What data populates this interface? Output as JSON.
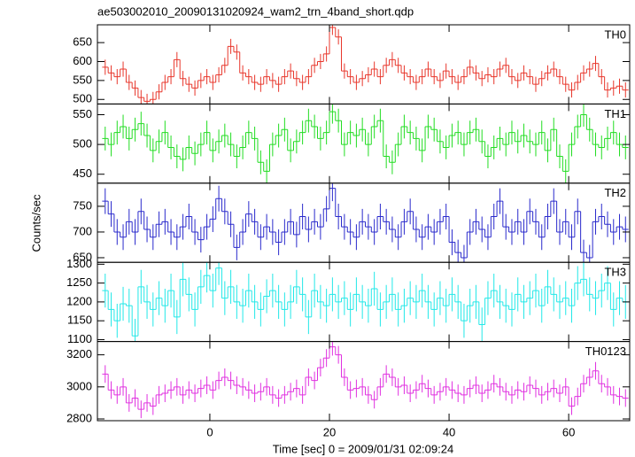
{
  "chart_data": {
    "type": "step",
    "title": "ae503002010_20090131020924_wam2_trn_4band_short.qdp",
    "xlabel": "Time [sec] 0 = 2009/01/31 02:09:24",
    "ylabel": "Counts/sec",
    "xlim": [
      -18.8,
      70.2
    ],
    "xticks": [
      0,
      20,
      40,
      60
    ],
    "x": [
      -17.5,
      -16.5,
      -15.5,
      -14.5,
      -13.5,
      -12.5,
      -11.5,
      -10.5,
      -9.5,
      -8.5,
      -7.5,
      -6.5,
      -5.5,
      -4.5,
      -3.5,
      -2.5,
      -1.5,
      -0.5,
      0.5,
      1.5,
      2.5,
      3.5,
      4.5,
      5.5,
      6.5,
      7.5,
      8.5,
      9.5,
      10.5,
      11.5,
      12.5,
      13.5,
      14.5,
      15.5,
      16.5,
      17.5,
      18.5,
      19.5,
      20.5,
      21.5,
      22.5,
      23.5,
      24.5,
      25.5,
      26.5,
      27.5,
      28.5,
      29.5,
      30.5,
      31.5,
      32.5,
      33.5,
      34.5,
      35.5,
      36.5,
      37.5,
      38.5,
      39.5,
      40.5,
      41.5,
      42.5,
      43.5,
      44.5,
      45.5,
      46.5,
      47.5,
      48.5,
      49.5,
      50.5,
      51.5,
      52.5,
      53.5,
      54.5,
      55.5,
      56.5,
      57.5,
      58.5,
      59.5,
      60.5,
      61.5,
      62.5,
      63.5,
      64.5,
      65.5,
      66.5,
      67.5,
      68.5,
      69.5
    ],
    "panels": [
      {
        "name": "TH0",
        "color": "#e8372c",
        "ylim": [
          488,
          697
        ],
        "yticks": [
          500,
          550,
          600,
          650
        ],
        "yerr": 20,
        "values": [
          585,
          570,
          560,
          580,
          545,
          530,
          505,
          495,
          500,
          520,
          545,
          560,
          605,
          555,
          540,
          530,
          550,
          560,
          545,
          565,
          590,
          640,
          625,
          570,
          560,
          545,
          540,
          560,
          550,
          540,
          560,
          575,
          555,
          545,
          560,
          590,
          600,
          620,
          690,
          665,
          575,
          560,
          545,
          555,
          565,
          580,
          560,
          590,
          605,
          590,
          570,
          560,
          545,
          560,
          580,
          560,
          550,
          575,
          560,
          545,
          560,
          585,
          570,
          555,
          565,
          560,
          580,
          590,
          560,
          550,
          570,
          560,
          540,
          555,
          570,
          580,
          560,
          540,
          525,
          545,
          570,
          580,
          595,
          560,
          525,
          530,
          535,
          525
        ]
      },
      {
        "name": "TH1",
        "color": "#22dd22",
        "ylim": [
          435,
          568
        ],
        "yticks": [
          450,
          500,
          550
        ],
        "yerr": 20,
        "values": [
          510,
          500,
          520,
          530,
          510,
          525,
          535,
          515,
          490,
          505,
          520,
          495,
          480,
          475,
          495,
          485,
          500,
          520,
          490,
          505,
          515,
          500,
          480,
          495,
          520,
          510,
          470,
          455,
          500,
          515,
          525,
          490,
          505,
          520,
          540,
          530,
          510,
          520,
          555,
          540,
          500,
          520,
          515,
          525,
          500,
          530,
          540,
          480,
          470,
          500,
          530,
          520,
          510,
          490,
          530,
          525,
          505,
          495,
          515,
          520,
          500,
          520,
          525,
          505,
          480,
          495,
          510,
          500,
          520,
          505,
          515,
          505,
          500,
          520,
          490,
          525,
          480,
          455,
          500,
          530,
          550,
          525,
          500,
          495,
          510,
          520,
          500,
          495
        ]
      },
      {
        "name": "TH2",
        "color": "#2a2acc",
        "ylim": [
          641,
          795
        ],
        "yticks": [
          650,
          700,
          750
        ],
        "yerr": 25,
        "values": [
          760,
          735,
          700,
          690,
          720,
          700,
          740,
          705,
          690,
          715,
          720,
          700,
          690,
          710,
          730,
          700,
          685,
          710,
          725,
          765,
          740,
          715,
          670,
          700,
          735,
          720,
          690,
          710,
          700,
          680,
          700,
          720,
          695,
          730,
          705,
          720,
          710,
          745,
          785,
          730,
          710,
          700,
          690,
          720,
          710,
          700,
          730,
          720,
          705,
          690,
          720,
          740,
          705,
          690,
          710,
          700,
          720,
          730,
          680,
          660,
          650,
          700,
          720,
          705,
          690,
          730,
          760,
          710,
          700,
          720,
          700,
          740,
          720,
          690,
          730,
          760,
          700,
          720,
          690,
          740,
          660,
          650,
          720,
          730,
          715,
          700,
          710,
          705
        ]
      },
      {
        "name": "TH3",
        "color": "#22e8e8",
        "ylim": [
          1095,
          1305
        ],
        "yticks": [
          1100,
          1150,
          1200,
          1250,
          1300
        ],
        "yerr": 45,
        "values": [
          1230,
          1180,
          1150,
          1195,
          1190,
          1110,
          1240,
          1200,
          1180,
          1210,
          1190,
          1230,
          1160,
          1260,
          1220,
          1180,
          1240,
          1270,
          1230,
          1290,
          1210,
          1240,
          1200,
          1190,
          1230,
          1200,
          1180,
          1215,
          1230,
          1200,
          1180,
          1200,
          1240,
          1220,
          1160,
          1230,
          1200,
          1190,
          1220,
          1200,
          1210,
          1180,
          1220,
          1200,
          1190,
          1235,
          1180,
          1200,
          1220,
          1180,
          1190,
          1210,
          1200,
          1230,
          1200,
          1180,
          1210,
          1190,
          1220,
          1200,
          1150,
          1190,
          1200,
          1140,
          1210,
          1230,
          1200,
          1190,
          1180,
          1220,
          1200,
          1210,
          1230,
          1190,
          1240,
          1220,
          1200,
          1210,
          1190,
          1250,
          1260,
          1220,
          1210,
          1230,
          1250,
          1180,
          1210,
          1200
        ]
      },
      {
        "name": "TH0123",
        "color": "#e030e0",
        "ylim": [
          2789,
          3283
        ],
        "yticks": [
          2800,
          3000,
          3200
        ],
        "yerr": 55,
        "values": [
          3080,
          2980,
          2950,
          3000,
          2900,
          2930,
          2860,
          2900,
          2880,
          2950,
          2960,
          2980,
          3000,
          2950,
          2980,
          2960,
          2990,
          3010,
          2980,
          3040,
          3060,
          3040,
          3010,
          3000,
          2980,
          2960,
          2970,
          3000,
          2950,
          2930,
          2950,
          2970,
          2990,
          2950,
          3060,
          3040,
          3120,
          3180,
          3250,
          3200,
          3060,
          2980,
          2990,
          3000,
          2950,
          2920,
          3000,
          3080,
          3060,
          3000,
          3010,
          2960,
          2980,
          3020,
          2990,
          2950,
          2970,
          3000,
          2980,
          2960,
          2950,
          2990,
          3010,
          2960,
          2980,
          3020,
          3000,
          2970,
          2950,
          2980,
          2970,
          3010,
          2990,
          2950,
          2970,
          2990,
          2960,
          3000,
          2880,
          2940,
          3020,
          3060,
          3100,
          3020,
          3000,
          2950,
          2940,
          2930
        ]
      }
    ]
  }
}
